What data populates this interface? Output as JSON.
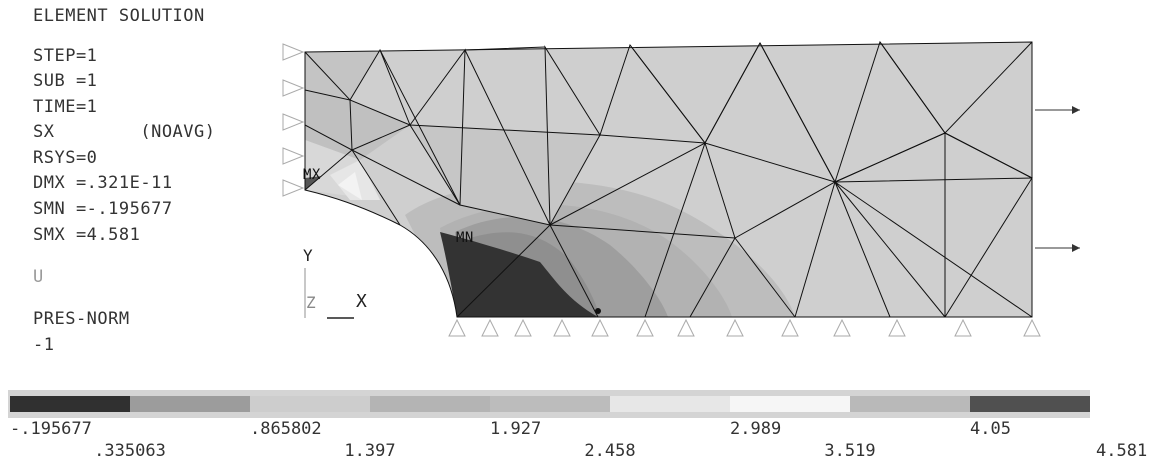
{
  "header": {
    "title": "ELEMENT SOLUTION"
  },
  "info": {
    "lines": [
      {
        "key": "STEP",
        "text": "STEP=1"
      },
      {
        "key": "SUB",
        "text": "SUB =1"
      },
      {
        "key": "TIME",
        "text": "TIME=1"
      },
      {
        "key": "SX",
        "text": "SX        (NOAVG)"
      },
      {
        "key": "RSYS",
        "text": "RSYS=0"
      },
      {
        "key": "DMX",
        "text": "DMX =.321E-11"
      },
      {
        "key": "SMN",
        "text": "SMN =-.195677"
      },
      {
        "key": "SMX",
        "text": "SMX =4.581"
      }
    ],
    "u_label": "U",
    "pres_label": "PRES-NORM",
    "pres_value": "-1"
  },
  "triad": {
    "y": "Y",
    "z": "Z",
    "x": "X"
  },
  "markers": {
    "max": "MX",
    "min": "MN"
  },
  "legend": {
    "colors": [
      "#303030",
      "#9c9c9c",
      "#cdcdcd",
      "#b4b4b4",
      "#bcbcbc",
      "#e7e7e7",
      "#f6f6f6",
      "#b9b9b9",
      "#505050"
    ],
    "labels_top": [
      "-.195677",
      ".865802",
      "1.927",
      "2.989",
      "4.05"
    ],
    "labels_bottom": [
      ".335063",
      "1.397",
      "2.458",
      "3.519",
      "4.581"
    ]
  },
  "colors": {
    "base_fill": "#cfcfcf",
    "band_light": "#bdbdbd",
    "band_mid": "#b2b2b2",
    "band_dark": "#9e9e9e",
    "band_darker": "#909090",
    "min_zone": "#333333",
    "edge": "#111111"
  }
}
